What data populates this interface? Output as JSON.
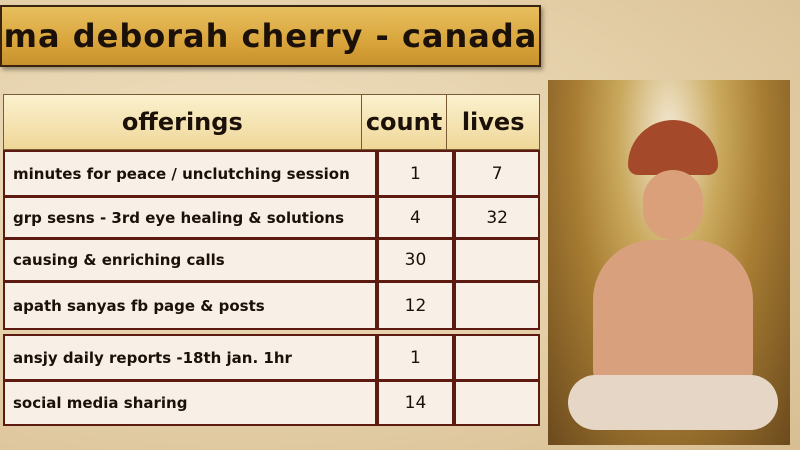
{
  "title": "ma deborah cherry - canada",
  "table": {
    "headers": [
      "offerings",
      "count",
      "lives"
    ],
    "group1": [
      {
        "label": "minutes for peace / unclutching session",
        "count": "1",
        "lives": "7"
      },
      {
        "label": "grp sesns - 3rd eye healing & solutions",
        "count": "4",
        "lives": "32"
      },
      {
        "label": "causing & enriching calls",
        "count": "30",
        "lives": ""
      },
      {
        "label": "apath sanyas fb page & posts",
        "count": "12",
        "lives": ""
      }
    ],
    "group2": [
      {
        "label": "ansjy daily reports -18th jan. 1hr",
        "count": "1",
        "lives": ""
      },
      {
        "label": "social media sharing",
        "count": "14",
        "lives": ""
      }
    ]
  },
  "colors": {
    "banner": "#d9a53c",
    "border": "#5c1a10",
    "cell": "#f8efe6"
  }
}
